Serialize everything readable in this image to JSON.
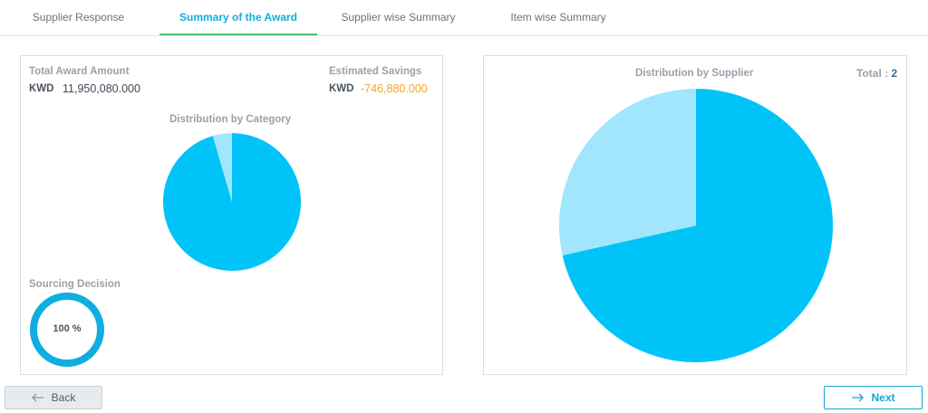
{
  "tabs": [
    {
      "label": "Supplier Response",
      "active": false
    },
    {
      "label": "Summary of the Award",
      "active": true
    },
    {
      "label": "Supplier wise Summary",
      "active": false
    },
    {
      "label": "Item wise Summary",
      "active": false
    }
  ],
  "award": {
    "total_label": "Total Award Amount",
    "currency": "KWD",
    "total_amount": "11,950,080.000",
    "savings_label": "Estimated Savings",
    "savings_amount": "-746,880.000"
  },
  "category_chart_title": "Distribution by Category",
  "sourcing": {
    "label": "Sourcing Decision",
    "percent_text": "100 %",
    "percent_value": 100
  },
  "supplier_panel": {
    "title": "Distribution by Supplier",
    "total_label": "Total :",
    "total_value": "2"
  },
  "buttons": {
    "back": "Back",
    "next": "Next"
  },
  "colors": {
    "primary_slice": "#00c4f8",
    "secondary_slice": "#a1e6fc",
    "ring": "#10aee0",
    "savings": "#f5a623",
    "active_tab": "#10aee0",
    "active_underline": "#4cc46c"
  },
  "chart_data": [
    {
      "type": "pie",
      "title": "Distribution by Category",
      "slices": [
        {
          "value": 95.5,
          "color": "#00c4f8"
        },
        {
          "value": 4.5,
          "color": "#a1e6fc"
        }
      ]
    },
    {
      "type": "pie",
      "title": "Distribution by Supplier",
      "slices": [
        {
          "value": 71.5,
          "color": "#00c4f8"
        },
        {
          "value": 28.5,
          "color": "#a1e6fc"
        }
      ]
    }
  ]
}
